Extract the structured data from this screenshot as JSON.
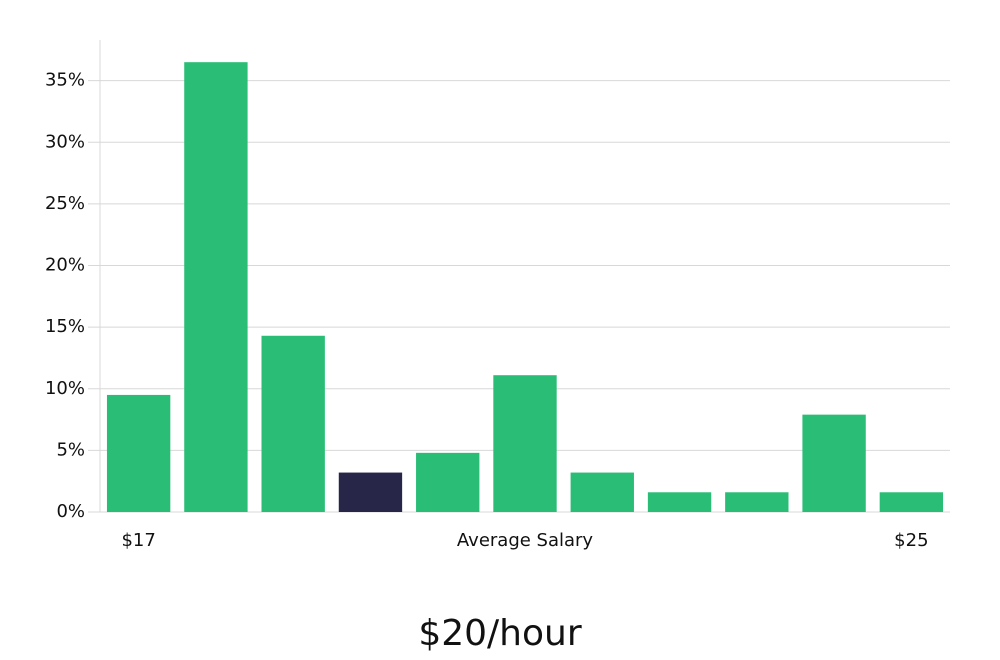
{
  "chart_data": {
    "type": "bar",
    "title": "$20/hour",
    "categories": [
      "$17",
      null,
      null,
      null,
      null,
      "Average Salary",
      null,
      null,
      null,
      null,
      "$25"
    ],
    "values": [
      9.5,
      36.5,
      14.3,
      3.2,
      4.8,
      11.1,
      3.2,
      1.6,
      1.6,
      7.9,
      1.6
    ],
    "colors": [
      "#2abd76",
      "#2abd76",
      "#2abd76",
      "#272548",
      "#2abd76",
      "#2abd76",
      "#2abd76",
      "#2abd76",
      "#2abd76",
      "#2abd76",
      "#2abd76"
    ],
    "ylim": [
      0,
      38.3
    ],
    "yticks": [
      {
        "value": 0,
        "label": "0%"
      },
      {
        "value": 5,
        "label": "5%"
      },
      {
        "value": 10,
        "label": "10%"
      },
      {
        "value": 15,
        "label": "15%"
      },
      {
        "value": 20,
        "label": "20%"
      },
      {
        "value": 25,
        "label": "25%"
      },
      {
        "value": 30,
        "label": "30%"
      },
      {
        "value": 35,
        "label": "35%"
      }
    ],
    "grid": true
  }
}
